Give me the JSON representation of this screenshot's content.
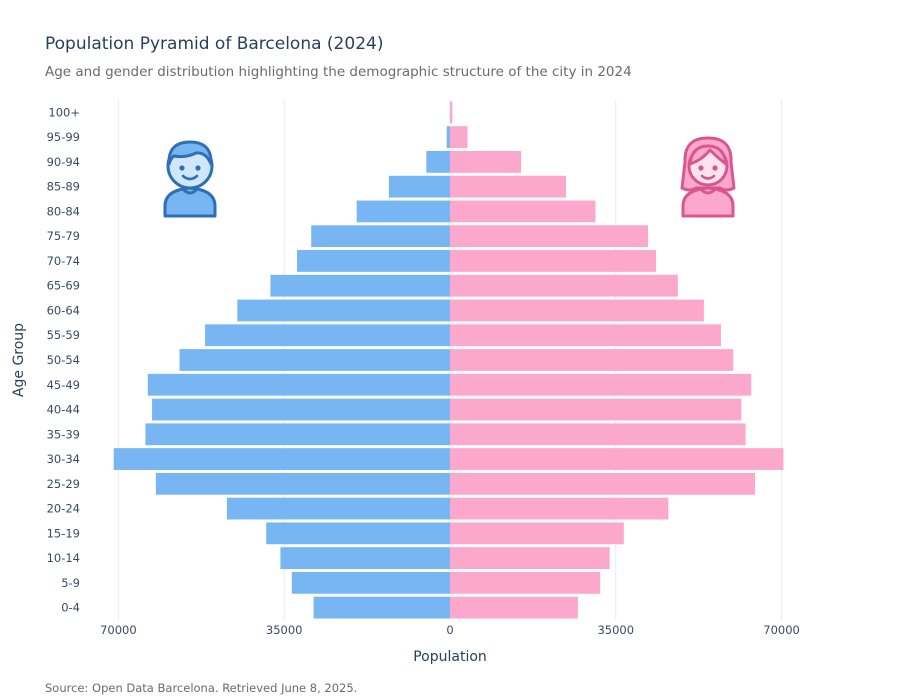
{
  "title": "Population Pyramid of Barcelona (2024)",
  "subtitle": "Age and gender distribution highlighting the demographic structure of the city in 2024",
  "source": "Source: Open Data Barcelona. Retrieved June 8, 2025.",
  "colors": {
    "male": "#77b6f2",
    "female": "#fca8cc",
    "grid": "#e8ebf0"
  },
  "icons": {
    "male": "male-person-icon",
    "female": "female-person-icon"
  },
  "chart_data": {
    "type": "bar",
    "orientation": "horizontal",
    "categories": [
      "0-4",
      "5-9",
      "10-14",
      "15-19",
      "20-24",
      "25-29",
      "30-34",
      "35-39",
      "40-44",
      "45-49",
      "50-54",
      "55-59",
      "60-64",
      "65-69",
      "70-74",
      "75-79",
      "80-84",
      "85-89",
      "90-94",
      "95-99",
      "100+"
    ],
    "series": [
      {
        "values": [
          28800,
          33400,
          35800,
          38800,
          47100,
          62100,
          71000,
          64300,
          62900,
          63800,
          57100,
          51700,
          44900,
          37900,
          32300,
          29300,
          19700,
          12900,
          5000,
          700,
          0
        ]
      },
      {
        "values": [
          27000,
          31700,
          33700,
          36700,
          46100,
          64400,
          70400,
          62400,
          61500,
          63600,
          59800,
          57200,
          53600,
          48100,
          43500,
          41800,
          30700,
          24500,
          15000,
          3700,
          500
        ]
      }
    ],
    "xlabel": "Population",
    "ylabel": "Age Group",
    "xlim": [
      -76000,
      76000
    ],
    "xticks": [
      -70000,
      -35000,
      0,
      35000,
      70000
    ],
    "xtick_labels": [
      "70000",
      "35000",
      "0",
      "35000",
      "70000"
    ],
    "grid": true
  }
}
